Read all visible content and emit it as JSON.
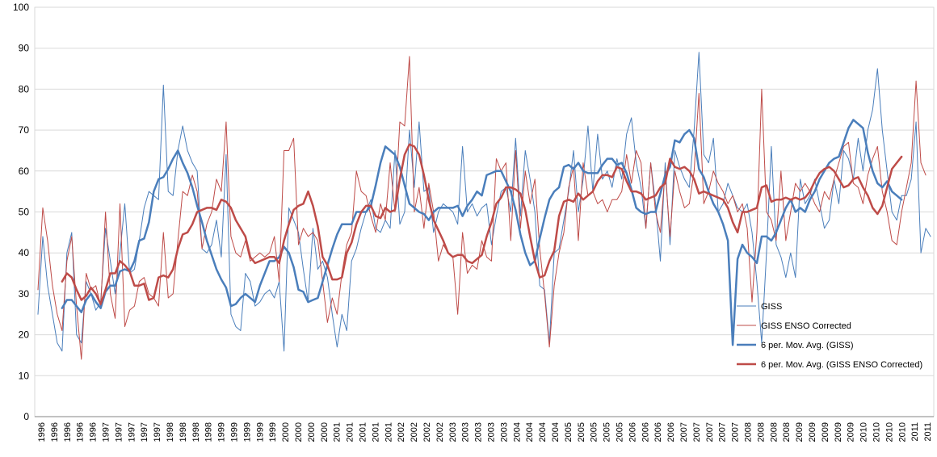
{
  "chart_data": {
    "type": "line",
    "title": "",
    "xlabel": "",
    "ylabel": "",
    "ylim": [
      0,
      100
    ],
    "yticks": [
      0,
      10,
      20,
      30,
      40,
      50,
      60,
      70,
      80,
      90,
      100
    ],
    "grid": true,
    "legend_position": "right",
    "x_tick_labels": [
      "1996",
      "1996",
      "1996",
      "1996",
      "1996",
      "1997",
      "1997",
      "1997",
      "1997",
      "1997",
      "1998",
      "1998",
      "1998",
      "1998",
      "1999",
      "1999",
      "1999",
      "1999",
      "1999",
      "2000",
      "2000",
      "2000",
      "2000",
      "2001",
      "2001",
      "2001",
      "2001",
      "2001",
      "2002",
      "2002",
      "2002",
      "2002",
      "2003",
      "2003",
      "2003",
      "2003",
      "2003",
      "2004",
      "2004",
      "2004",
      "2004",
      "2005",
      "2005",
      "2005",
      "2005",
      "2005",
      "2006",
      "2006",
      "2006",
      "2006",
      "2007",
      "2007",
      "2007",
      "2007",
      "2007",
      "2008",
      "2008",
      "2008",
      "2008",
      "2009",
      "2009",
      "2009",
      "2009",
      "2009",
      "2010",
      "2010",
      "2010",
      "2010",
      "2011",
      "2011"
    ],
    "series": [
      {
        "name": "GISS",
        "color": "#4a7ebb",
        "width": 1,
        "values": [
          25,
          44,
          32,
          25,
          18,
          16,
          40,
          45,
          20,
          18,
          33,
          30,
          26,
          28,
          46,
          38,
          30,
          40,
          52,
          35,
          36,
          43,
          51,
          55,
          54,
          53,
          81,
          55,
          54,
          65,
          71,
          65,
          62,
          60,
          41,
          40,
          42,
          48,
          39,
          64,
          25,
          22,
          21,
          35,
          33,
          27,
          28,
          30,
          31,
          29,
          33,
          16,
          51,
          48,
          45,
          36,
          28,
          46,
          36,
          38,
          34,
          25,
          17,
          25,
          21,
          38,
          41,
          46,
          50,
          53,
          46,
          45,
          48,
          46,
          65,
          47,
          50,
          70,
          56,
          72,
          55,
          56,
          45,
          50,
          52,
          51,
          50,
          47,
          66,
          50,
          52,
          49,
          51,
          52,
          42,
          49,
          55,
          56,
          50,
          68,
          49,
          65,
          58,
          50,
          32,
          31,
          18,
          40,
          41,
          48,
          55,
          65,
          50,
          58,
          71,
          55,
          69,
          58,
          60,
          56,
          63,
          58,
          69,
          73,
          62,
          56,
          46,
          62,
          52,
          38,
          62,
          42,
          65,
          61,
          58,
          56,
          70,
          89,
          64,
          62,
          68,
          50,
          52,
          57,
          54,
          51,
          50,
          52,
          45,
          33,
          18,
          40,
          66,
          42,
          39,
          34,
          40,
          34,
          58,
          52,
          54,
          58,
          52,
          46,
          48,
          58,
          52,
          65,
          63,
          58,
          68,
          60,
          70,
          75,
          85,
          70,
          60,
          50,
          48,
          54,
          54,
          58,
          72,
          40,
          46,
          44
        ]
      },
      {
        "name": "GISS ENSO Corrected",
        "color": "#be4b48",
        "width": 1,
        "values": [
          31,
          51,
          43,
          32,
          25,
          21,
          38,
          44,
          27,
          14,
          35,
          31,
          32,
          27,
          50,
          30,
          24,
          52,
          22,
          26,
          27,
          33,
          34,
          30,
          29,
          27,
          45,
          29,
          30,
          43,
          55,
          54,
          59,
          55,
          41,
          47,
          50,
          58,
          55,
          72,
          44,
          40,
          39,
          43,
          38,
          39,
          40,
          39,
          40,
          44,
          33,
          65,
          65,
          68,
          42,
          46,
          44,
          45,
          43,
          33,
          23,
          29,
          25,
          35,
          42,
          45,
          60,
          55,
          54,
          49,
          45,
          52,
          48,
          62,
          50,
          72,
          71,
          88,
          50,
          56,
          46,
          57,
          50,
          38,
          42,
          40,
          39,
          25,
          45,
          35,
          37,
          36,
          43,
          39,
          38,
          63,
          60,
          62,
          43,
          65,
          46,
          60,
          52,
          58,
          41,
          30,
          17,
          32,
          40,
          45,
          56,
          61,
          43,
          62,
          54,
          55,
          52,
          53,
          50,
          53,
          53,
          55,
          64,
          57,
          65,
          62,
          46,
          62,
          50,
          45,
          60,
          44,
          60,
          55,
          51,
          52,
          60,
          79,
          52,
          55,
          60,
          57,
          55,
          52,
          54,
          50,
          52,
          46,
          28,
          45,
          80,
          50,
          48,
          43,
          60,
          43,
          50,
          57,
          55,
          57,
          55,
          52,
          50,
          55,
          53,
          58,
          62,
          66,
          67,
          57,
          56,
          52,
          59,
          63,
          66,
          55,
          50,
          43,
          42,
          50,
          56,
          62,
          82,
          62,
          59
        ]
      },
      {
        "name": "6 per. Mov. Avg. (GISS)",
        "color": "#4a7ebb",
        "width": 2.5,
        "values": [
          null,
          null,
          null,
          null,
          null,
          26.5,
          28.5,
          28.5,
          27,
          25.5,
          28.5,
          30,
          28,
          26.5,
          30.5,
          32,
          32,
          35.5,
          36,
          35.5,
          38,
          43,
          43.5,
          47.5,
          55,
          58,
          58.5,
          60.5,
          63,
          65,
          62,
          59.5,
          56,
          51.5,
          47.5,
          43,
          39.5,
          36,
          33.5,
          31.5,
          27,
          27.5,
          29,
          30,
          29,
          28,
          32,
          35,
          38,
          38,
          39,
          41.5,
          40,
          36.5,
          31,
          30.5,
          28,
          28.5,
          29,
          33,
          37,
          41,
          44.5,
          47,
          47,
          47,
          50,
          50,
          50,
          51.5,
          56.5,
          62,
          66,
          65,
          64,
          61,
          56.5,
          52,
          51,
          50,
          49.5,
          48,
          50,
          51,
          51,
          51,
          51,
          51.5,
          49,
          51.5,
          53,
          55,
          54,
          59,
          59.5,
          60,
          60,
          57.5,
          55,
          50.5,
          44.5,
          40,
          37,
          38,
          43.5,
          48.5,
          53,
          55,
          56,
          61,
          61.5,
          60.5,
          62,
          60,
          59.5,
          59.5,
          59.5,
          61.5,
          63,
          63,
          61.5,
          62,
          59.5,
          55.5,
          51,
          50,
          49.5,
          50,
          50,
          54.5,
          59,
          61,
          67.5,
          67,
          69,
          70,
          68,
          60.5,
          58.5,
          55,
          52,
          50,
          47,
          43,
          17.5,
          38.5,
          42,
          40,
          39,
          37.5,
          44,
          44,
          43,
          45,
          48,
          51,
          53,
          50,
          51,
          50,
          53,
          55,
          58,
          60,
          62,
          63,
          63.5,
          67,
          70.5,
          72.5,
          71.5,
          70.5,
          64.5,
          60,
          57,
          56,
          57.5,
          55,
          54,
          53
        ]
      },
      {
        "name": "6 per. Mov. Avg. (GISS ENSO Corrected)",
        "color": "#be4b48",
        "width": 2.5,
        "values": [
          null,
          null,
          null,
          null,
          null,
          33,
          35,
          34,
          31,
          28.5,
          29.5,
          31.5,
          30,
          27.5,
          31,
          35,
          35,
          38,
          37,
          35.5,
          32,
          32,
          32.5,
          28.5,
          29,
          34,
          34.5,
          34,
          36,
          41,
          44.5,
          45,
          47,
          50,
          50.5,
          51,
          51,
          50.5,
          53,
          52.5,
          51,
          48,
          46,
          44,
          39,
          37.5,
          38,
          38.5,
          39,
          39,
          37.5,
          43,
          47,
          50.5,
          51.5,
          52,
          55,
          51.5,
          46.5,
          39,
          37,
          33.5,
          33.5,
          34,
          40,
          42.5,
          47,
          50,
          51.5,
          51.5,
          49,
          48.5,
          51,
          50,
          50.5,
          58,
          64,
          66.5,
          66,
          64,
          59,
          53,
          48,
          45.5,
          43,
          40,
          39,
          39.5,
          39.5,
          38,
          37.5,
          38.5,
          39.5,
          44,
          47.5,
          52,
          53.5,
          56,
          56,
          55.5,
          54.5,
          50.5,
          44,
          38,
          34,
          34.5,
          38,
          40.5,
          49,
          52.5,
          53,
          52.5,
          54.5,
          53,
          54,
          55,
          57.5,
          59,
          59,
          58.5,
          61,
          60.5,
          57.5,
          55,
          55,
          54.5,
          53,
          53.5,
          54,
          56,
          57,
          63,
          61,
          60.5,
          61,
          60,
          58,
          54.5,
          55,
          54.5,
          54,
          53.5,
          53,
          51,
          47.5,
          45,
          50,
          50,
          50.5,
          51,
          56,
          56.5,
          52.5,
          53,
          53,
          53.5,
          53,
          53.5,
          53,
          53.5,
          55,
          57.5,
          59.5,
          60.5,
          61,
          60,
          58,
          56,
          56.5,
          58,
          58.5,
          56,
          54,
          51,
          49.5,
          51.5,
          56,
          60.5,
          62,
          63.5
        ]
      }
    ]
  }
}
